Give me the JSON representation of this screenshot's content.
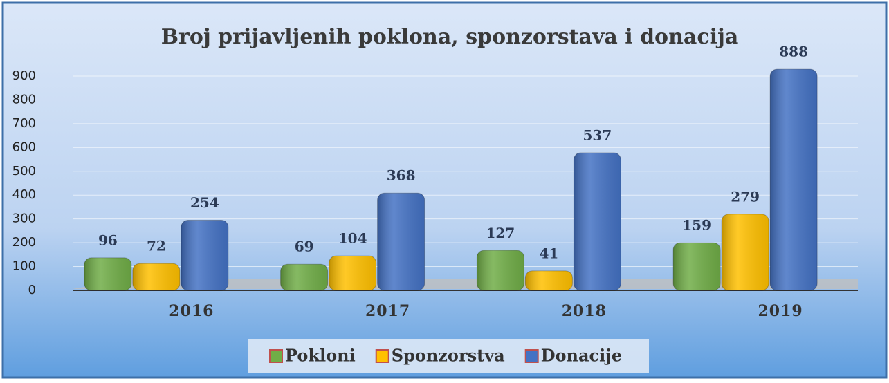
{
  "chart_data": {
    "type": "bar",
    "title": "Broj prijavljenih poklona, sponzorstava i donacija",
    "categories": [
      "2016",
      "2017",
      "2018",
      "2019"
    ],
    "series": [
      {
        "name": "Pokloni",
        "color": "#70ad47",
        "values": [
          96,
          69,
          127,
          159
        ]
      },
      {
        "name": "Sponzorstva",
        "color": "#ffc000",
        "values": [
          72,
          104,
          41,
          279
        ]
      },
      {
        "name": "Donacije",
        "color": "#4472c4",
        "values": [
          254,
          368,
          537,
          888
        ]
      }
    ],
    "ylim": [
      0,
      900
    ],
    "yticks": [
      0,
      100,
      200,
      300,
      400,
      500,
      600,
      700,
      800,
      900
    ],
    "grid": true,
    "legend": "bottom"
  }
}
